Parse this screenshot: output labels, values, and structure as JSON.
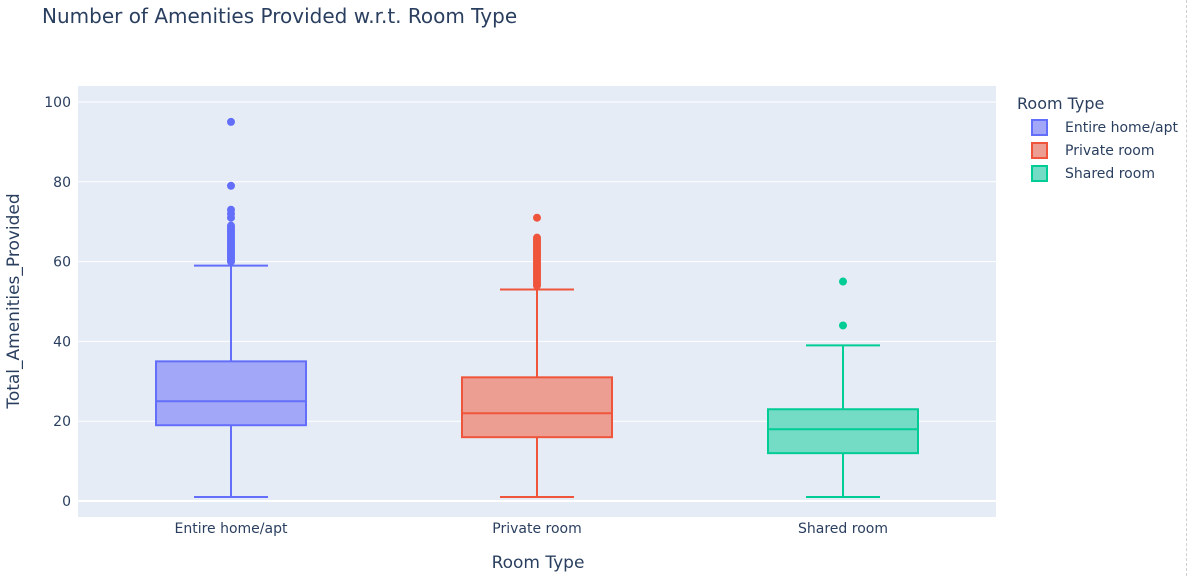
{
  "chart_data": {
    "type": "box",
    "title": "Number of Amenities Provided w.r.t. Room Type",
    "xlabel": "Room Type",
    "ylabel": "Total_Amenities_Provided",
    "ylim": [
      -4,
      104
    ],
    "yticks": [
      0,
      20,
      40,
      60,
      80,
      100
    ],
    "categories": [
      "Entire home/apt",
      "Private room",
      "Shared room"
    ],
    "grid": true,
    "legend": {
      "title": "Room Type",
      "position": "top-right"
    },
    "series": [
      {
        "name": "Entire home/apt",
        "color": "#636efa",
        "fill": "#a2a8f7",
        "min": 1,
        "q1": 19,
        "median": 25,
        "q3": 35,
        "max": 59,
        "outliers": [
          60,
          60.5,
          61,
          61.5,
          62,
          62.5,
          63,
          63.5,
          64,
          64.5,
          65,
          65.5,
          66,
          66.5,
          67,
          67.5,
          68,
          68.5,
          69,
          71,
          72,
          73,
          79,
          95
        ]
      },
      {
        "name": "Private room",
        "color": "#ef553b",
        "fill": "#ec9e93",
        "min": 1,
        "q1": 16,
        "median": 22,
        "q3": 31,
        "max": 53,
        "outliers": [
          54,
          54.5,
          55,
          55.5,
          56,
          56.5,
          57,
          57.5,
          58,
          58.5,
          59,
          59.5,
          60,
          60.5,
          61,
          61.5,
          62,
          62.5,
          63,
          63.5,
          64,
          64.5,
          65,
          65.5,
          66,
          71
        ]
      },
      {
        "name": "Shared room",
        "color": "#00cc96",
        "fill": "#74dbc4",
        "min": 1,
        "q1": 12,
        "median": 18,
        "q3": 23,
        "max": 39,
        "outliers": [
          44,
          55
        ]
      }
    ]
  }
}
